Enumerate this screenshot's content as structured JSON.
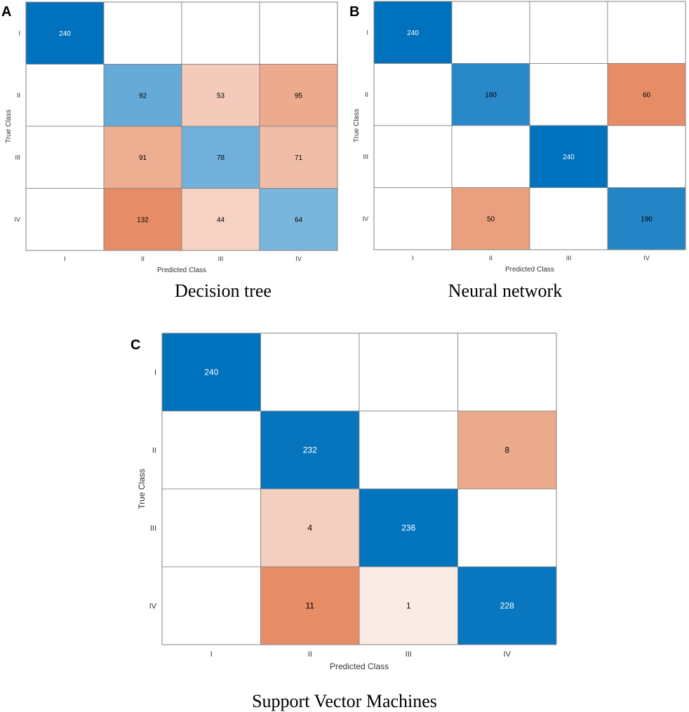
{
  "chart_data": [
    {
      "type": "heatmap",
      "panel": "A",
      "title": "Decision tree",
      "xlabel": "Predicted Class",
      "ylabel": "True Class",
      "x_categories": [
        "I",
        "II",
        "III",
        "IV"
      ],
      "y_categories": [
        "I",
        "II",
        "III",
        "IV"
      ],
      "matrix": [
        [
          240,
          null,
          null,
          null
        ],
        [
          null,
          92,
          53,
          95
        ],
        [
          null,
          91,
          78,
          71
        ],
        [
          null,
          132,
          44,
          64
        ]
      ]
    },
    {
      "type": "heatmap",
      "panel": "B",
      "title": "Neural network",
      "xlabel": "Predicted Class",
      "ylabel": "True Class",
      "x_categories": [
        "I",
        "II",
        "III",
        "IV"
      ],
      "y_categories": [
        "I",
        "II",
        "III",
        "IV"
      ],
      "matrix": [
        [
          240,
          null,
          null,
          null
        ],
        [
          null,
          180,
          null,
          60
        ],
        [
          null,
          null,
          240,
          null
        ],
        [
          null,
          50,
          null,
          190
        ]
      ]
    },
    {
      "type": "heatmap",
      "panel": "C",
      "title": "Support Vector Machines",
      "xlabel": "Predicted Class",
      "ylabel": "True Class",
      "x_categories": [
        "I",
        "II",
        "III",
        "IV"
      ],
      "y_categories": [
        "I",
        "II",
        "III",
        "IV"
      ],
      "matrix": [
        [
          240,
          null,
          null,
          null
        ],
        [
          null,
          232,
          null,
          8
        ],
        [
          null,
          4,
          236,
          null
        ],
        [
          null,
          11,
          1,
          228
        ]
      ]
    }
  ],
  "colors": {
    "diag_max": "#0072BD",
    "diag_min": "#FFFFFF",
    "off_max": "#D95319",
    "off_min": "#FFFFFF",
    "grid": "#808080"
  }
}
